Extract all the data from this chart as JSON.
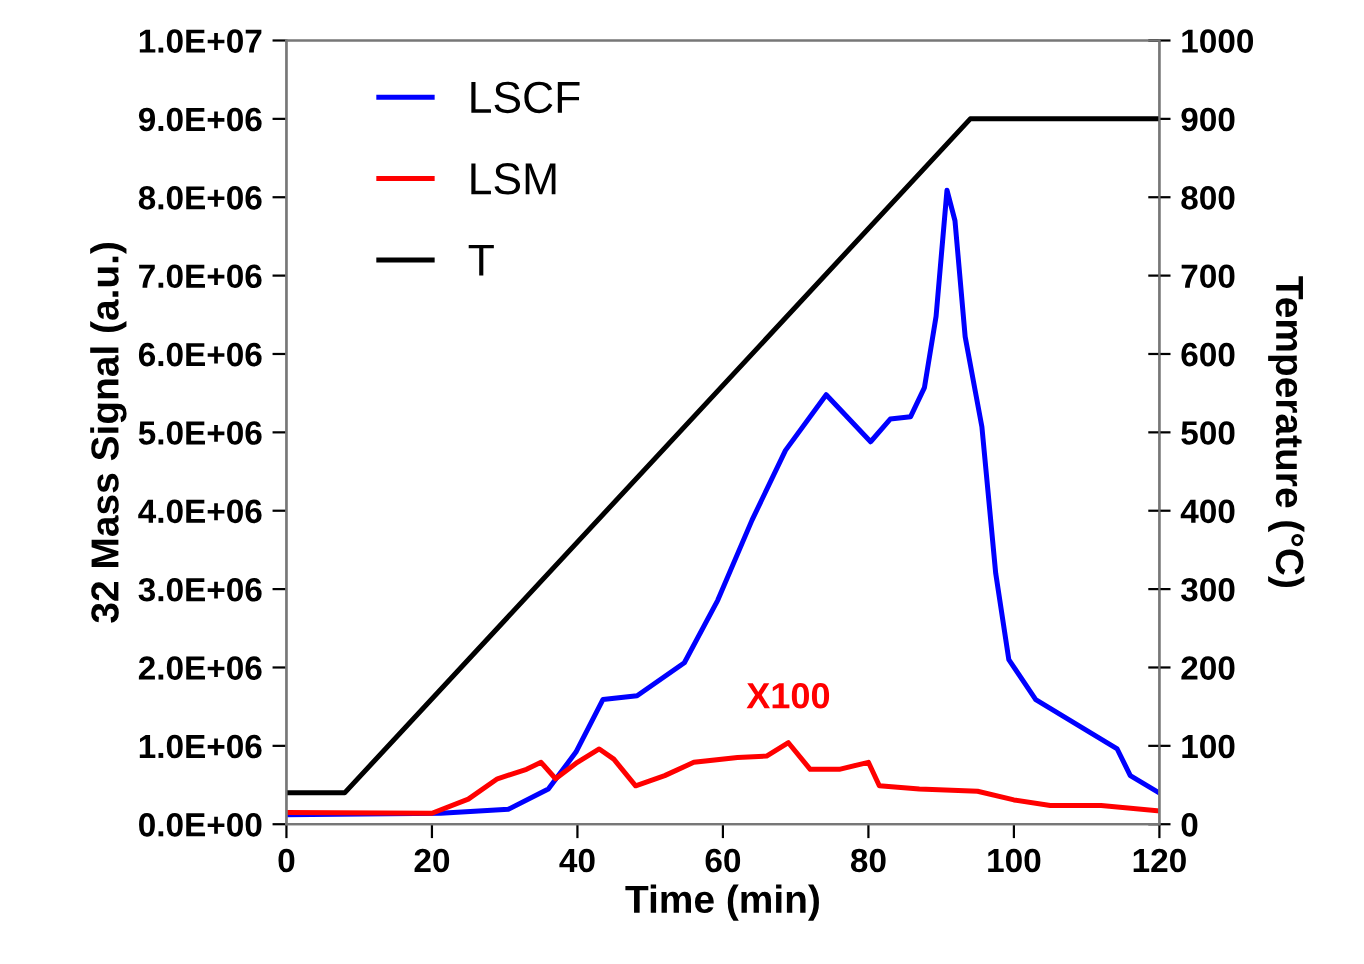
{
  "chart_data": {
    "type": "line",
    "xlabel": "Time (min)",
    "ylabel": "32 Mass Signal (a.u.)",
    "y2label": "Temperature (°C)",
    "xlim": [
      0,
      120
    ],
    "xticks": [
      0,
      20,
      40,
      60,
      80,
      100,
      120
    ],
    "ylim": [
      0,
      10000000
    ],
    "yticks": [
      {
        "value": 0,
        "label": "0.0E+00"
      },
      {
        "value": 1000000,
        "label": "1.0E+06"
      },
      {
        "value": 2000000,
        "label": "2.0E+06"
      },
      {
        "value": 3000000,
        "label": "3.0E+06"
      },
      {
        "value": 4000000,
        "label": "4.0E+06"
      },
      {
        "value": 5000000,
        "label": "5.0E+06"
      },
      {
        "value": 6000000,
        "label": "6.0E+06"
      },
      {
        "value": 7000000,
        "label": "7.0E+06"
      },
      {
        "value": 8000000,
        "label": "8.0E+06"
      },
      {
        "value": 9000000,
        "label": "9.0E+06"
      },
      {
        "value": 10000000,
        "label": "1.0E+07"
      }
    ],
    "y2lim": [
      0,
      1000
    ],
    "y2ticks": [
      0,
      100,
      200,
      300,
      400,
      500,
      600,
      700,
      800,
      900,
      1000
    ],
    "legend": "top left",
    "grid": false,
    "annotations": [
      "X100"
    ],
    "series": [
      {
        "name": "LSCF",
        "color": "#0000ff",
        "x": [
          0,
          21.2,
          30.5,
          36,
          39.8,
          43.5,
          48.2,
          54.7,
          59.3,
          64,
          68.6,
          74.2,
          80.3,
          83,
          85.8,
          87.7,
          89.3,
          90.8,
          91.9,
          93.3,
          94.7,
          95.6,
          97.5,
          99.3,
          103,
          110.5,
          114.2,
          116,
          119.8
        ],
        "values": [
          120000,
          140000,
          190000,
          450000,
          920000,
          1590000,
          1640000,
          2060000,
          2860000,
          3880000,
          4770000,
          5480000,
          4880000,
          5170000,
          5200000,
          5570000,
          6480000,
          8090000,
          7700000,
          6220000,
          5520000,
          5070000,
          3200000,
          2100000,
          1590000,
          1170000,
          960000,
          620000,
          410000
        ]
      },
      {
        "name": "LSM",
        "color": "#ff0000",
        "x": [
          0,
          20,
          25,
          29,
          33,
          35,
          37,
          40,
          43,
          45,
          48,
          52,
          56,
          62,
          66,
          69,
          72,
          76,
          80,
          81.5,
          87,
          95,
          100,
          105,
          112,
          120
        ],
        "values": [
          150000,
          140000,
          320000,
          580000,
          700000,
          790000,
          580000,
          790000,
          960000,
          830000,
          490000,
          620000,
          790000,
          850000,
          870000,
          1040000,
          700000,
          700000,
          790000,
          490000,
          450000,
          420000,
          310000,
          240000,
          240000,
          170000
        ]
      },
      {
        "name": "T",
        "color": "#000000",
        "axis": "y2",
        "x": [
          0,
          8,
          94,
          120
        ],
        "values": [
          40,
          40,
          900,
          900
        ]
      }
    ]
  }
}
